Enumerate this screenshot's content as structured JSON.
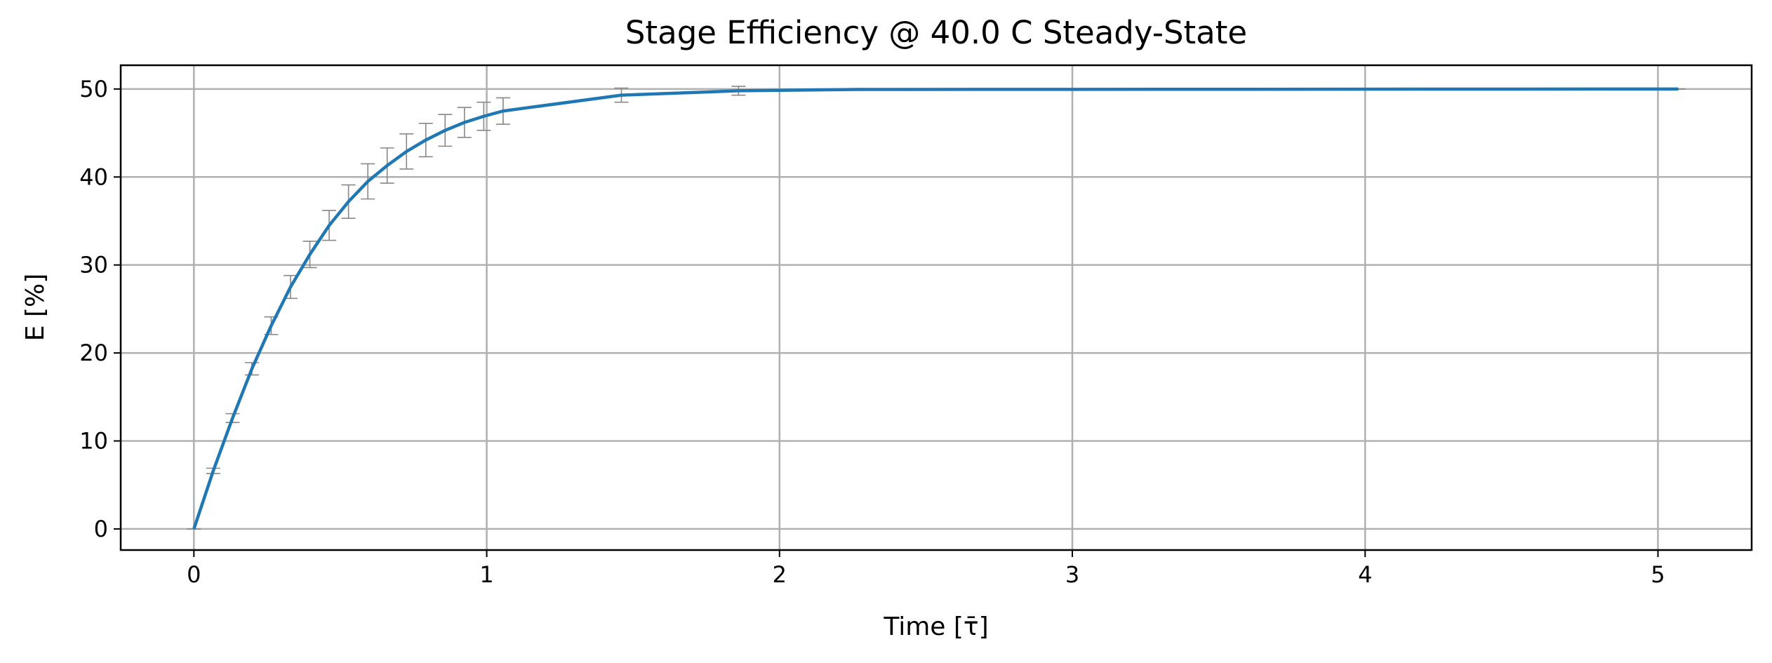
{
  "chart_data": {
    "type": "line",
    "title": "Stage Efficiency @ 40.0 C Steady-State",
    "x_label": "Time [τ̄]",
    "y_label": "E [%]",
    "x": [
      0,
      0.066,
      0.132,
      0.198,
      0.264,
      0.33,
      0.396,
      0.462,
      0.528,
      0.594,
      0.66,
      0.726,
      0.792,
      0.858,
      0.924,
      0.99,
      1.056,
      1.46,
      1.86,
      2.27,
      5.07
    ],
    "series": [
      {
        "color": "#1f77b4",
        "values": [
          0,
          6.6,
          12.6,
          18.2,
          23.1,
          27.5,
          31.2,
          34.5,
          37.2,
          39.5,
          41.3,
          42.9,
          44.2,
          45.3,
          46.2,
          46.9,
          47.5,
          49.3,
          49.8,
          49.95,
          50
        ],
        "errors": [
          0,
          0.3,
          0.5,
          0.7,
          1.0,
          1.3,
          1.5,
          1.7,
          1.9,
          2.0,
          2.0,
          2.0,
          1.9,
          1.8,
          1.7,
          1.6,
          1.5,
          0.8,
          0.5,
          0.1,
          0
        ],
        "error_color": "#888888"
      }
    ],
    "xlim": [
      -0.25,
      5.32
    ],
    "ylim": [
      -2.4,
      52.7
    ],
    "xticks": [
      0,
      1,
      2,
      3,
      4,
      5
    ],
    "yticks": [
      0,
      10,
      20,
      30,
      40,
      50
    ],
    "grid": true
  }
}
